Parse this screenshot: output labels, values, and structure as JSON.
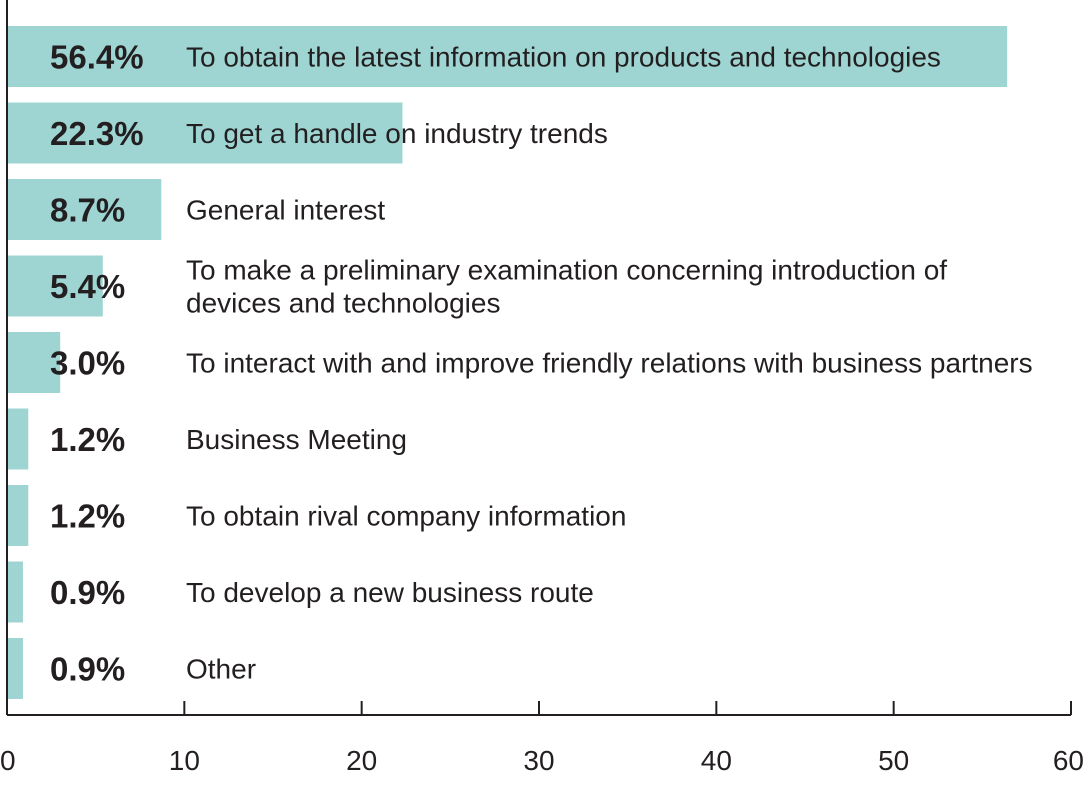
{
  "chart_data": {
    "type": "bar",
    "orientation": "horizontal",
    "categories": [
      [
        "To obtain the latest information on products and technologies"
      ],
      [
        "To get a handle on industry trends"
      ],
      [
        "General interest"
      ],
      [
        "To make a preliminary examination concerning introduction of",
        "devices and technologies"
      ],
      [
        "To interact with and improve friendly relations with business partners"
      ],
      [
        "Business Meeting"
      ],
      [
        "To obtain rival company information"
      ],
      [
        "To develop a new business route"
      ],
      [
        "Other"
      ]
    ],
    "values": [
      56.4,
      22.3,
      8.7,
      5.4,
      3.0,
      1.2,
      1.2,
      0.9,
      0.9
    ],
    "value_labels": [
      "56.4%",
      "22.3%",
      "8.7%",
      "5.4%",
      "3.0%",
      "1.2%",
      "1.2%",
      "0.9%",
      "0.9%"
    ],
    "xlim": [
      0,
      60
    ],
    "xticks": [
      0,
      10,
      20,
      30,
      40,
      50,
      60
    ],
    "xtick_labels": [
      "0",
      "10",
      "20",
      "30",
      "40",
      "50",
      "60"
    ],
    "title": "",
    "xlabel": "",
    "ylabel": "",
    "grid": false,
    "legend": "none",
    "bar_color": "#9ed5d3",
    "axis_color": "#231f20",
    "text_color": "#231f20"
  }
}
